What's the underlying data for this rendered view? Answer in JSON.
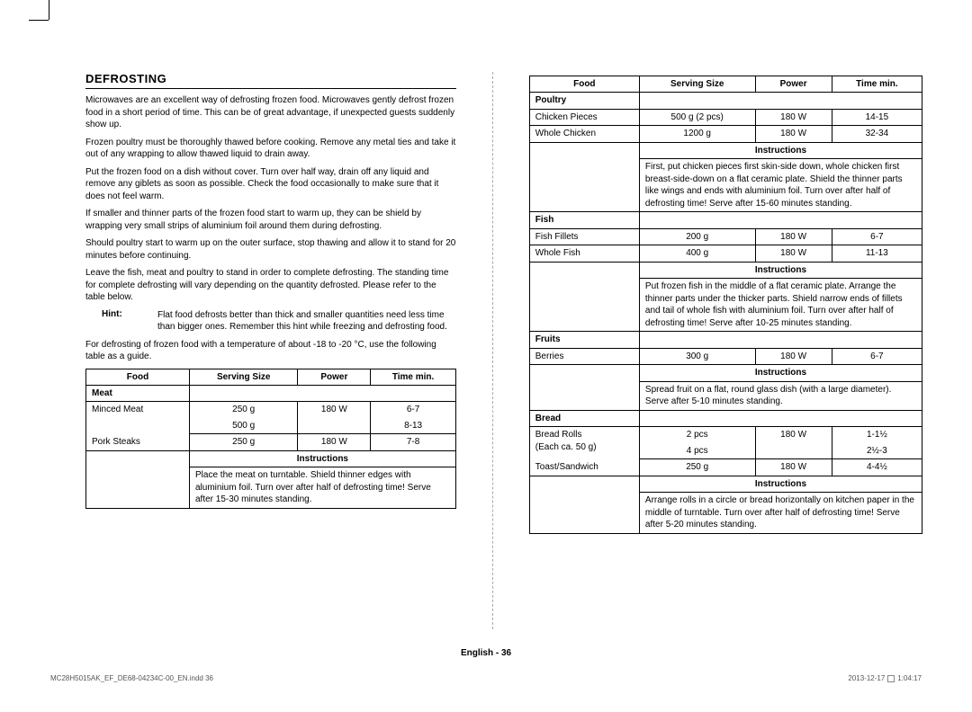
{
  "heading": "DEFROSTING",
  "paragraphs": [
    "Microwaves are an excellent way of defrosting frozen food. Microwaves gently defrost frozen food in a short period of time. This can be of great advantage, if unexpected guests suddenly show up.",
    "Frozen poultry must be thoroughly thawed before cooking. Remove any metal ties and take it out of any wrapping to allow thawed liquid to drain away.",
    "Put the frozen food on a dish without cover. Turn over half way, drain off any liquid and remove any giblets as soon as possible. Check the food occasionally to make sure that it does not feel warm.",
    "If smaller and thinner parts of the frozen food start to warm up, they can be shield by wrapping very small strips of aluminium foil around them during defrosting.",
    "Should poultry start to warm up on the outer surface, stop thawing and allow it to stand for 20 minutes before continuing.",
    "Leave the fish, meat and poultry to stand in order to complete defrosting. The standing time for complete defrosting will vary depending on the quantity defrosted. Please refer to the table below."
  ],
  "hint_label": "Hint:",
  "hint_text": "Flat food defrosts better than thick and smaller quantities need less time than bigger ones. Remember this hint while freezing and defrosting food.",
  "lead_in": "For defrosting of frozen food with a temperature of about -18 to -20 °C, use the following table as a guide.",
  "columns": [
    "Food",
    "Serving Size",
    "Power",
    "Time min."
  ],
  "left_table": {
    "sections": [
      {
        "category": "Meat",
        "rows": [
          {
            "food": "Minced Meat",
            "sizes": [
              "250 g",
              "500 g"
            ],
            "powers": [
              "180 W",
              ""
            ],
            "times": [
              "6-7",
              "8-13"
            ]
          },
          {
            "food": "Pork Steaks",
            "sizes": [
              "250 g"
            ],
            "powers": [
              "180 W"
            ],
            "times": [
              "7-8"
            ]
          }
        ],
        "instructions": "Place the meat on turntable. Shield thinner edges with aluminium foil. Turn over after half of defrosting time! Serve after 15-30 minutes standing."
      }
    ]
  },
  "right_table": {
    "sections": [
      {
        "category": "Poultry",
        "rows": [
          {
            "food": "Chicken Pieces",
            "sizes": [
              "500 g (2 pcs)"
            ],
            "powers": [
              "180 W"
            ],
            "times": [
              "14-15"
            ]
          },
          {
            "food": "Whole Chicken",
            "sizes": [
              "1200 g"
            ],
            "powers": [
              "180 W"
            ],
            "times": [
              "32-34"
            ]
          }
        ],
        "instructions": "First, put chicken pieces first skin-side down, whole chicken first breast-side-down on a flat ceramic plate. Shield the thinner parts like wings and ends with aluminium foil. Turn over after half of defrosting time! Serve after 15-60 minutes standing."
      },
      {
        "category": "Fish",
        "rows": [
          {
            "food": "Fish Fillets",
            "sizes": [
              "200 g"
            ],
            "powers": [
              "180 W"
            ],
            "times": [
              "6-7"
            ]
          },
          {
            "food": "Whole Fish",
            "sizes": [
              "400 g"
            ],
            "powers": [
              "180 W"
            ],
            "times": [
              "11-13"
            ]
          }
        ],
        "instructions": "Put frozen fish in the middle of a flat ceramic plate. Arrange the thinner parts under the thicker parts. Shield narrow ends of fillets and tail of whole fish with aluminium foil. Turn over after half of defrosting time! Serve after 10-25 minutes standing."
      },
      {
        "category": "Fruits",
        "rows": [
          {
            "food": "Berries",
            "sizes": [
              "300 g"
            ],
            "powers": [
              "180 W"
            ],
            "times": [
              "6-7"
            ]
          }
        ],
        "instructions": "Spread fruit on a flat, round glass dish (with a large diameter). Serve after 5-10 minutes standing."
      },
      {
        "category": "Bread",
        "rows": [
          {
            "food": "Bread Rolls (Each ca. 50 g)",
            "sizes": [
              "2 pcs",
              "4 pcs"
            ],
            "powers": [
              "180 W",
              ""
            ],
            "times": [
              "1-1½",
              "2½-3"
            ]
          },
          {
            "food": "Toast/Sandwich",
            "sizes": [
              "250 g"
            ],
            "powers": [
              "180 W"
            ],
            "times": [
              "4-4½"
            ]
          }
        ],
        "instructions": "Arrange rolls in a circle or bread horizontally on kitchen paper in the middle of turntable. Turn over after half of defrosting time! Serve after 5-20 minutes standing."
      }
    ]
  },
  "instructions_label": "Instructions",
  "footer_center": "English - 36",
  "footer_left": "MC28H5015AK_EF_DE68-04234C-00_EN.indd   36",
  "footer_right_date": "2013-12-17",
  "footer_right_time": "1:04:17"
}
